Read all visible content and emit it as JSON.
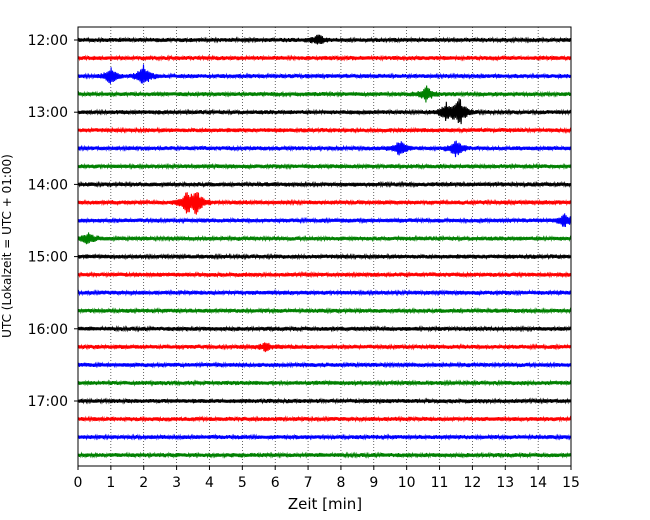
{
  "chart_data": {
    "type": "line",
    "subtype": "helicorder",
    "title": "",
    "xlabel": "Zeit  [min]",
    "ylabel": "UTC (Lokalzeit = UTC + 01:00)",
    "xlim": [
      0,
      15
    ],
    "x_ticks": [
      "0",
      "1",
      "2",
      "3",
      "4",
      "5",
      "6",
      "7",
      "8",
      "9",
      "10",
      "11",
      "12",
      "13",
      "14",
      "15"
    ],
    "y_ticks": [
      "12:00",
      "13:00",
      "14:00",
      "15:00",
      "16:00",
      "17:00"
    ],
    "trace_interval_minutes": 15,
    "trace_start_times": [
      "12:00",
      "12:15",
      "12:30",
      "12:45",
      "13:00",
      "13:15",
      "13:30",
      "13:45",
      "14:00",
      "14:15",
      "14:30",
      "14:45",
      "15:00",
      "15:15",
      "15:30",
      "15:45",
      "16:00",
      "16:15",
      "16:30",
      "16:45",
      "17:00",
      "17:15",
      "17:30",
      "17:45"
    ],
    "color_cycle": [
      "#000000",
      "#ff0000",
      "#0000ff",
      "#008000"
    ],
    "grid": "vertical dotted at each minute",
    "events": [
      {
        "trace": 0,
        "minute": 7.3,
        "amplitude": 1.0
      },
      {
        "trace": 2,
        "minute": 1.0,
        "amplitude": 1.4
      },
      {
        "trace": 2,
        "minute": 2.0,
        "amplitude": 2.0
      },
      {
        "trace": 3,
        "minute": 10.6,
        "amplitude": 1.4
      },
      {
        "trace": 4,
        "minute": 11.2,
        "amplitude": 1.7
      },
      {
        "trace": 4,
        "minute": 11.6,
        "amplitude": 2.8
      },
      {
        "trace": 6,
        "minute": 9.8,
        "amplitude": 1.4
      },
      {
        "trace": 6,
        "minute": 11.5,
        "amplitude": 1.6
      },
      {
        "trace": 9,
        "minute": 3.3,
        "amplitude": 1.8
      },
      {
        "trace": 9,
        "minute": 3.6,
        "amplitude": 2.5
      },
      {
        "trace": 10,
        "minute": 14.8,
        "amplitude": 1.3
      },
      {
        "trace": 11,
        "minute": 0.3,
        "amplitude": 1.0
      },
      {
        "trace": 17,
        "minute": 5.7,
        "amplitude": 0.7
      }
    ]
  }
}
